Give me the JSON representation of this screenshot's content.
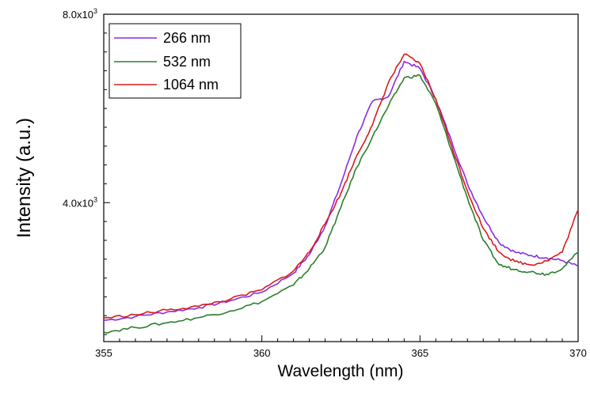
{
  "chart_data": {
    "type": "line",
    "title": "",
    "xlabel": "Wavelength (nm)",
    "ylabel": "Intensity (a.u.)",
    "xlim": [
      355,
      370
    ],
    "ylim": [
      1050,
      8000
    ],
    "grid": false,
    "legend_position": "top-left",
    "x_ticks": [
      355,
      360,
      365,
      370
    ],
    "x_tick_labels": [
      "355",
      "360",
      "365",
      "370"
    ],
    "y_ticks": [
      4000,
      8000
    ],
    "y_tick_labels": [
      {
        "mantissa": "4.0x10",
        "exp": "3"
      },
      {
        "mantissa": "8.0x10",
        "exp": "3"
      }
    ],
    "x": [
      355,
      356,
      357,
      358,
      359,
      360,
      361,
      361.5,
      362,
      362.5,
      363,
      363.5,
      364,
      364.5,
      365,
      365.5,
      366,
      366.5,
      367,
      367.5,
      368,
      368.5,
      369,
      369.5,
      370
    ],
    "series": [
      {
        "name": "266 nm",
        "color": "#8b2be2",
        "values": [
          1500,
          1580,
          1680,
          1770,
          1920,
          2100,
          2500,
          2900,
          3500,
          4400,
          5400,
          6150,
          6250,
          7000,
          6850,
          6200,
          5300,
          4400,
          3700,
          3150,
          2950,
          2880,
          2830,
          2770,
          2650
        ]
      },
      {
        "name": "532 nm",
        "color": "#2e7d2e",
        "values": [
          1250,
          1350,
          1450,
          1560,
          1700,
          1900,
          2250,
          2600,
          3050,
          3900,
          4750,
          5400,
          6050,
          6650,
          6700,
          6100,
          5100,
          4100,
          3200,
          2680,
          2580,
          2530,
          2480,
          2600,
          2950
        ]
      },
      {
        "name": "1064 nm",
        "color": "#d91c1c",
        "values": [
          1550,
          1620,
          1720,
          1800,
          1950,
          2150,
          2550,
          2950,
          3550,
          4200,
          5000,
          5650,
          6550,
          7150,
          6950,
          6200,
          5200,
          4250,
          3450,
          2950,
          2750,
          2680,
          2760,
          2950,
          3850
        ]
      }
    ]
  }
}
